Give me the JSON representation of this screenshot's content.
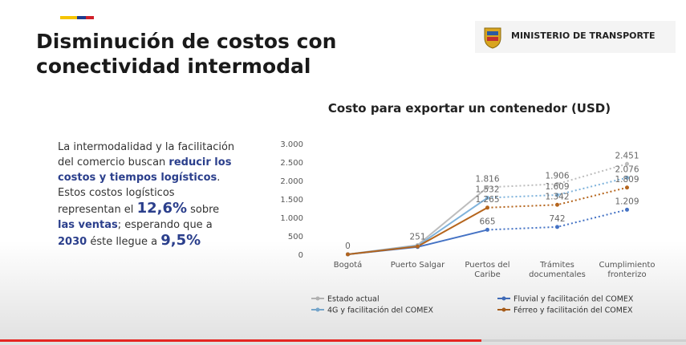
{
  "slide": {
    "title": "Disminución de costos con conectividad intermodal",
    "logo": "MINISTERIO DE TRANSPORTE",
    "body": [
      "La intermodalidad y la facilitación del comercio buscan ",
      "reducir los costos y tiempos logísticos",
      ". Estos costos logísticos representan el ",
      "12,6%",
      " sobre ",
      "las ventas",
      "; esperando que a ",
      "2030",
      " éste llegue a ",
      "9,5%"
    ]
  },
  "chart_data": {
    "type": "line",
    "title": "Costo para exportar un contenedor (USD)",
    "categories": [
      "Bogotá",
      "Puerto Salgar",
      "Puertos del Caribe",
      "Trámites documentales",
      "Cumplimiento fronterizo"
    ],
    "series": [
      {
        "name": "Estado actual",
        "color": "#bdbdbd",
        "values": [
          0,
          251,
          1816,
          1906,
          2451
        ],
        "value_labels": [
          "0",
          "251",
          "1.816",
          "1.906",
          "2.451"
        ]
      },
      {
        "name": "Fluvial y facilitación del COMEX",
        "color": "#4472c4",
        "values": [
          0,
          200,
          665,
          742,
          1209
        ],
        "value_labels": [
          null,
          null,
          "665",
          "742",
          "1.209"
        ]
      },
      {
        "name": "4G y facilitación del COMEX",
        "color": "#7fb3dc",
        "values": [
          0,
          230,
          1532,
          1609,
          2076
        ],
        "value_labels": [
          null,
          null,
          "1.532",
          "1.609",
          "2.076"
        ]
      },
      {
        "name": "Férreo y facilitación del COMEX",
        "color": "#b5651d",
        "values": [
          0,
          215,
          1265,
          1342,
          1809
        ],
        "value_labels": [
          null,
          null,
          "1.265",
          "1.342",
          "1.809"
        ]
      }
    ],
    "ylim": [
      0,
      3000
    ],
    "yticks": [
      0,
      500,
      {
        "value": 1000,
        "label": "1.000"
      },
      {
        "value": 1500,
        "label": "1.500"
      },
      {
        "value": 2000,
        "label": "2.000"
      },
      {
        "value": 2500,
        "label": "2.500"
      },
      {
        "value": 3000,
        "label": "3.000"
      }
    ],
    "grid": false
  }
}
